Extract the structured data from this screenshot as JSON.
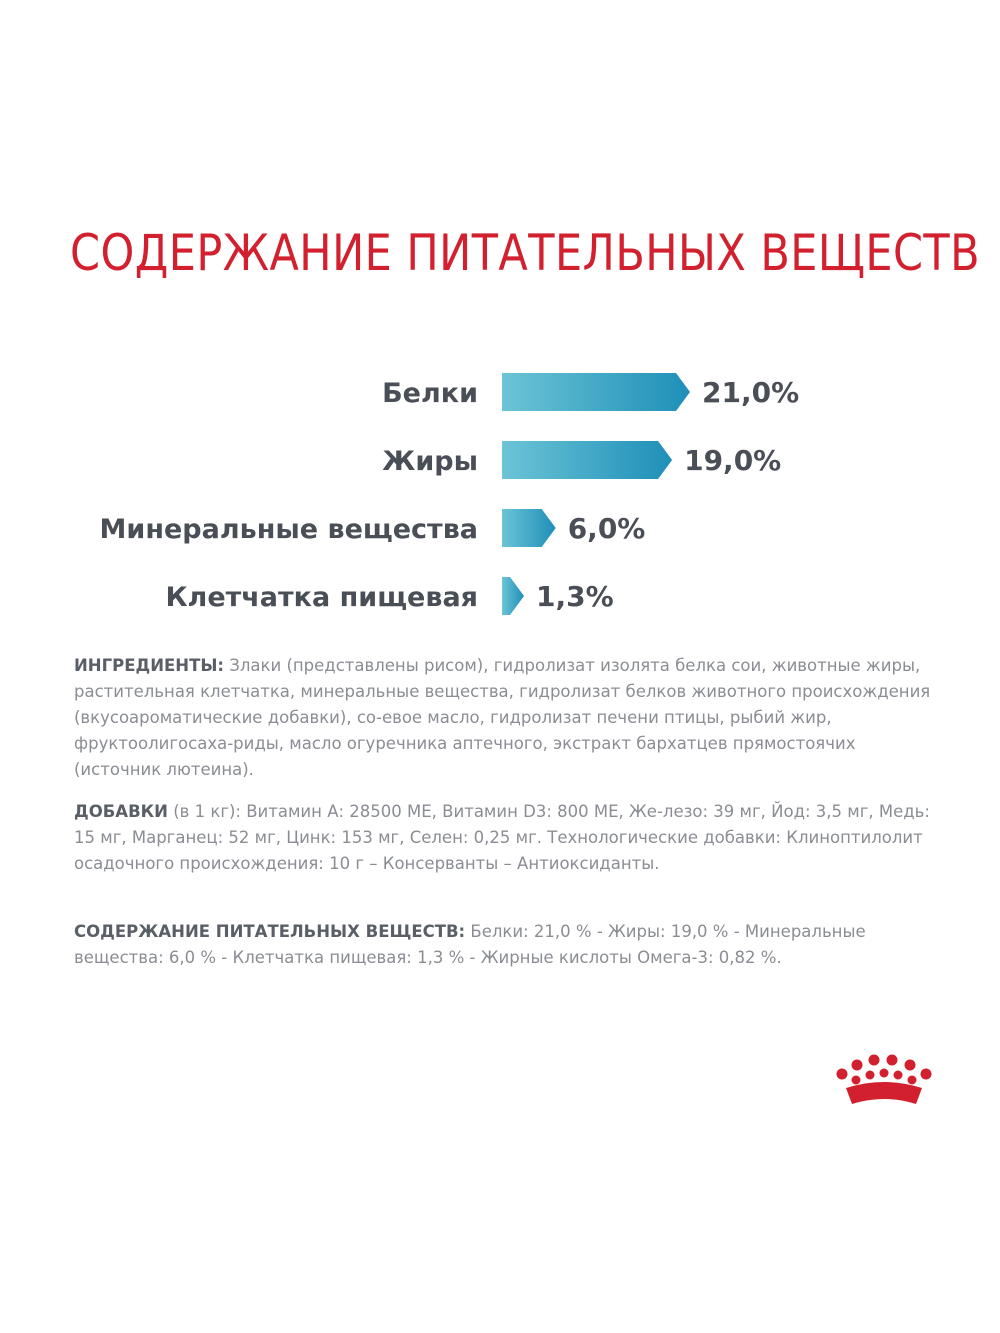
{
  "title": "СОДЕРЖАНИЕ ПИТАТЕЛЬНЫХ ВЕЩЕСТВ",
  "colors": {
    "title": "#d2202f",
    "bar_light": "#6cc4d6",
    "bar_dark": "#1e8fb8",
    "label": "#4a4f57",
    "body_text": "#8a8d93",
    "logo": "#d2202f"
  },
  "chart_data": {
    "type": "bar",
    "orientation": "horizontal",
    "title": "СОДЕРЖАНИЕ ПИТАТЕЛЬНЫХ ВЕЩЕСТВ",
    "categories": [
      "Белки",
      "Жиры",
      "Минеральные вещества",
      "Клетчатка пищевая"
    ],
    "values": [
      21.0,
      19.0,
      6.0,
      1.3
    ],
    "value_labels": [
      "21,0%",
      "19,0%",
      "6,0%",
      "1,3%"
    ],
    "unit": "%",
    "grid": false,
    "legend": "none"
  },
  "ingredients": {
    "lead": "ИНГРЕДИЕНТЫ:",
    "text": " Злаки (представлены рисом), гидролизат изолята белка сои, животные жиры, растительная клетчатка, минеральные вещества, гидролизат белков животного происхождения (вкусоароматические добавки), со-евое масло, гидролизат печени птицы, рыбий жир, фруктоолигосаха-риды, масло огуречника аптечного, экстракт бархатцев прямостоячих (источник лютеина)."
  },
  "additives": {
    "lead": "ДОБАВКИ",
    "text": " (в 1 кг): Витамин А: 28500 МЕ, Витамин D3: 800 МЕ, Же-лезо: 39 мг, Йод: 3,5 мг, Медь: 15 мг, Марганец: 52 мг, Цинк: 153  мг, Селен: 0,25 мг. Технологические добавки: Клиноптилолит осадочного происхождения: 10 г – Консерванты – Антиоксиданты."
  },
  "nutrients": {
    "lead": "СОДЕРЖАНИЕ ПИТАТЕЛЬНЫХ ВЕЩЕСТВ:",
    "text": " Белки: 21,0 % - Жиры: 19,0 % - Минеральные вещества: 6,0 %  - Клетчатка пищевая: 1,3 % - Жирные кислоты Омега-3: 0,82 %."
  },
  "logo": {
    "icon": "crown-icon"
  }
}
